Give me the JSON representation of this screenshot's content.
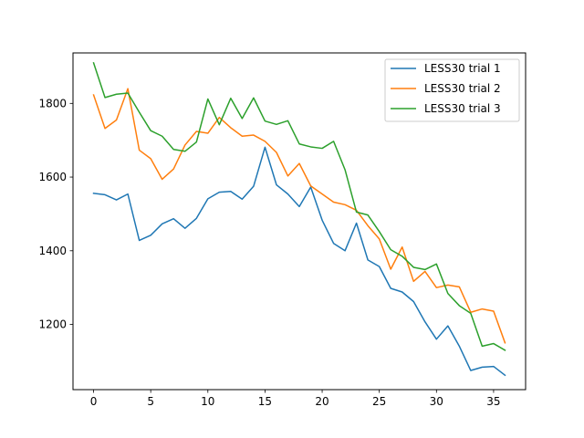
{
  "chart_data": {
    "type": "line",
    "title": "",
    "xlabel": "",
    "ylabel": "",
    "xlim": [
      -1.8,
      37.8
    ],
    "ylim": [
      1023,
      1937
    ],
    "xticks": [
      0,
      5,
      10,
      15,
      20,
      25,
      30,
      35
    ],
    "yticks": [
      1200,
      1400,
      1600,
      1800
    ],
    "grid": false,
    "legend_position": "top-right",
    "x": [
      0,
      1,
      2,
      3,
      4,
      5,
      6,
      7,
      8,
      9,
      10,
      11,
      12,
      13,
      14,
      15,
      16,
      17,
      18,
      19,
      20,
      21,
      22,
      23,
      24,
      25,
      26,
      27,
      28,
      29,
      30,
      31,
      32,
      33,
      34,
      35,
      36
    ],
    "series": [
      {
        "name": "LESS30 trial 1",
        "color": "#1f77b4",
        "values": [
          1556,
          1552,
          1538,
          1554,
          1428,
          1442,
          1473,
          1487,
          1461,
          1488,
          1541,
          1559,
          1561,
          1540,
          1575,
          1681,
          1579,
          1554,
          1520,
          1573,
          1483,
          1420,
          1400,
          1475,
          1375,
          1357,
          1298,
          1288,
          1262,
          1207,
          1160,
          1196,
          1141,
          1075,
          1084,
          1086,
          1062
        ]
      },
      {
        "name": "LESS30 trial 2",
        "color": "#ff7f0e",
        "values": [
          1823,
          1732,
          1755,
          1840,
          1673,
          1650,
          1594,
          1622,
          1687,
          1724,
          1719,
          1762,
          1734,
          1711,
          1714,
          1697,
          1667,
          1603,
          1637,
          1576,
          1554,
          1532,
          1525,
          1510,
          1468,
          1432,
          1350,
          1410,
          1317,
          1344,
          1300,
          1307,
          1302,
          1233,
          1242,
          1236,
          1150
        ]
      },
      {
        "name": "LESS30 trial 3",
        "color": "#2ca02c",
        "values": [
          1910,
          1816,
          1825,
          1828,
          1776,
          1726,
          1711,
          1675,
          1670,
          1695,
          1812,
          1742,
          1814,
          1759,
          1815,
          1752,
          1743,
          1753,
          1690,
          1682,
          1678,
          1697,
          1620,
          1505,
          1497,
          1452,
          1403,
          1385,
          1355,
          1349,
          1364,
          1284,
          1251,
          1230,
          1141,
          1148,
          1130
        ]
      }
    ]
  }
}
